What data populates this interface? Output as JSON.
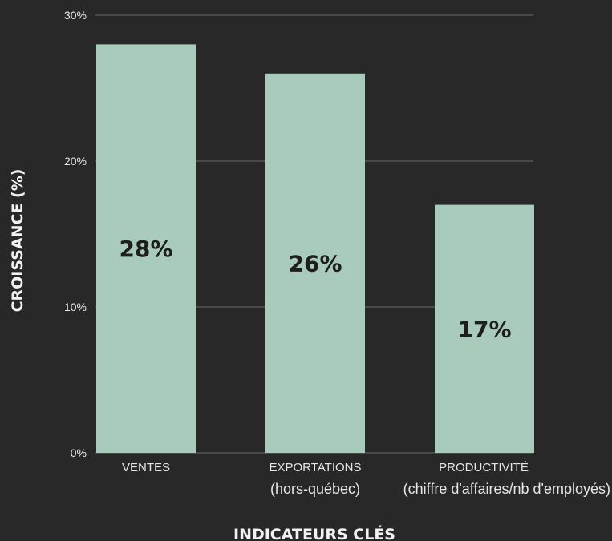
{
  "chart_data": {
    "type": "bar",
    "categories": [
      "VENTES",
      "EXPORTATIONS",
      "PRODUCTIVITÉ"
    ],
    "category_sublabels": [
      "",
      "(hors-québec)",
      "(chiffre d'affaires/nb d'employés)"
    ],
    "values": [
      28,
      26,
      17
    ],
    "data_labels": [
      "28%",
      "26%",
      "17%"
    ],
    "title": "",
    "xlabel": "INDICATEURS CLÉS",
    "ylabel": "CROISSANCE (%)",
    "ylim": [
      0,
      30
    ],
    "yticks": [
      0,
      10,
      20,
      30
    ],
    "ytick_labels": [
      "0%",
      "10%",
      "20%",
      "30%"
    ],
    "grid": true,
    "legend": "none",
    "colors": {
      "background": "#282828",
      "bar": "#a9cbbc",
      "grid": "#6a6a6a",
      "text": "#e6e6e6",
      "data_label": "#1e1e1e"
    }
  }
}
